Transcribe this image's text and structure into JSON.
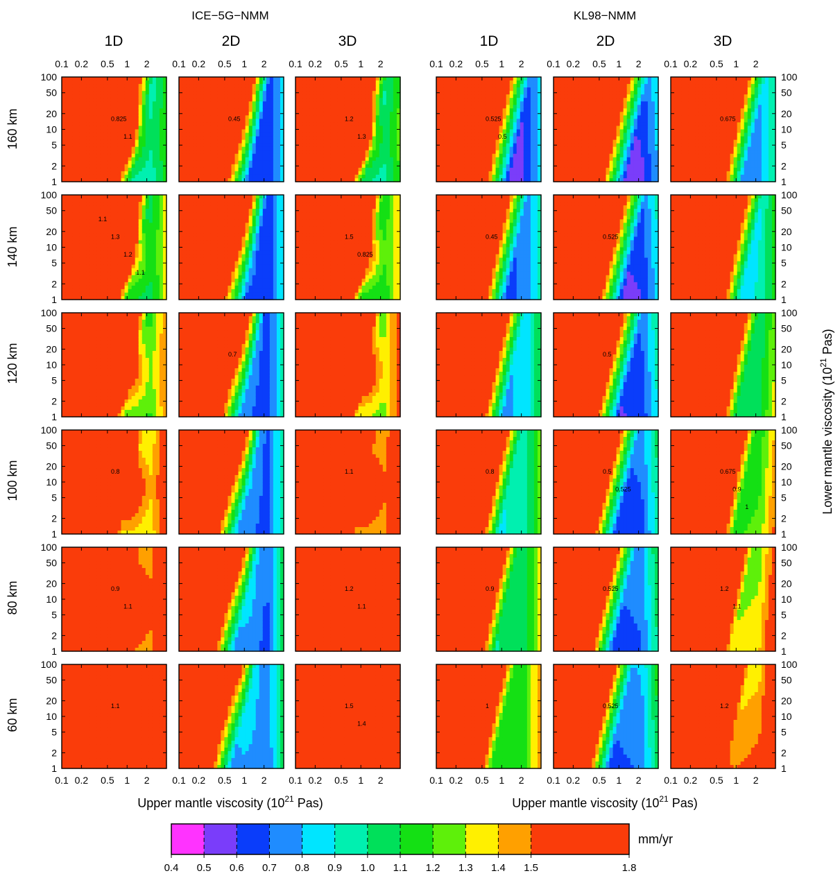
{
  "chart_data": {
    "type": "heatmap",
    "groups": [
      {
        "title": "ICE−5G−NMM",
        "columns": [
          "1D",
          "2D",
          "3D"
        ]
      },
      {
        "title": "KL98−NMM",
        "columns": [
          "1D",
          "2D",
          "3D"
        ]
      }
    ],
    "rows": [
      "160 km",
      "140 km",
      "120 km",
      "100 km",
      "80 km",
      "60 km"
    ],
    "x_axis": {
      "label": "Upper mantle viscosity (10",
      "sup": "21",
      "label_end": " Pas)",
      "ticks": [
        "0.1",
        "0.2",
        "0.5",
        "1",
        "2"
      ],
      "tick_values": [
        0.1,
        0.2,
        0.5,
        1,
        2
      ],
      "range": [
        0.1,
        4
      ],
      "scale": "log"
    },
    "y_axis": {
      "label": "Lower mantle viscosity (10",
      "sup": "21",
      "label_end": " Pas)",
      "ticks": [
        "100",
        "50",
        "20",
        "10",
        "5",
        "2",
        "1"
      ],
      "tick_values": [
        100,
        50,
        20,
        10,
        5,
        2,
        1
      ],
      "range": [
        1,
        100
      ],
      "scale": "log"
    },
    "colorbar": {
      "unit": "mm/yr",
      "boundaries": [
        "0.4",
        "0.5",
        "0.6",
        "0.7",
        "0.8",
        "0.9",
        "1.0",
        "1.1",
        "1.2",
        "1.3",
        "1.4",
        "1.5",
        "1.8"
      ],
      "colors": [
        "#ff33ff",
        "#7a3dfa",
        "#0a3dfa",
        "#1f8cff",
        "#00e5ff",
        "#00f0b0",
        "#00e05a",
        "#14e014",
        "#5ef00a",
        "#fff000",
        "#ffa000",
        "#fa3c0a"
      ]
    },
    "contour_labels": [
      {
        "panel": "r0c0",
        "text": "0.825"
      },
      {
        "panel": "r0c0",
        "text": "1.1"
      },
      {
        "panel": "r0c1",
        "text": "0.45"
      },
      {
        "panel": "r0c2",
        "text": "1.2"
      },
      {
        "panel": "r0c2",
        "text": "1.3"
      },
      {
        "panel": "r0c3",
        "text": "0.525"
      },
      {
        "panel": "r0c3",
        "text": "0.5"
      },
      {
        "panel": "r0c5",
        "text": "0.675"
      },
      {
        "panel": "r1c0",
        "text": "1.3"
      },
      {
        "panel": "r1c0",
        "text": "1.2"
      },
      {
        "panel": "r1c0",
        "text": "1.1"
      },
      {
        "panel": "r1c0",
        "text": "1.1"
      },
      {
        "panel": "r1c2",
        "text": "1.5"
      },
      {
        "panel": "r1c2",
        "text": "0.825"
      },
      {
        "panel": "r1c3",
        "text": "0.45"
      },
      {
        "panel": "r1c4",
        "text": "0.525"
      },
      {
        "panel": "r2c1",
        "text": "0.7"
      },
      {
        "panel": "r2c4",
        "text": "0.5"
      },
      {
        "panel": "r3c0",
        "text": "0.8"
      },
      {
        "panel": "r3c2",
        "text": "1.1"
      },
      {
        "panel": "r3c3",
        "text": "0.8"
      },
      {
        "panel": "r3c4",
        "text": "0.5"
      },
      {
        "panel": "r3c4",
        "text": "0.525"
      },
      {
        "panel": "r3c5",
        "text": "0.675"
      },
      {
        "panel": "r3c5",
        "text": "0.9"
      },
      {
        "panel": "r3c5",
        "text": "1"
      },
      {
        "panel": "r4c0",
        "text": "0.9"
      },
      {
        "panel": "r4c0",
        "text": "1.1"
      },
      {
        "panel": "r4c2",
        "text": "1.2"
      },
      {
        "panel": "r4c2",
        "text": "1.1"
      },
      {
        "panel": "r4c3",
        "text": "0.9"
      },
      {
        "panel": "r4c4",
        "text": "0.525"
      },
      {
        "panel": "r4c5",
        "text": "1.2"
      },
      {
        "panel": "r4c5",
        "text": "1.1"
      },
      {
        "panel": "r5c0",
        "text": "1.1"
      },
      {
        "panel": "r5c2",
        "text": "1.5"
      },
      {
        "panel": "r5c2",
        "text": "1.4"
      },
      {
        "panel": "r5c3",
        "text": "1"
      },
      {
        "panel": "r5c4",
        "text": "0.525"
      },
      {
        "panel": "r5c5",
        "text": "1.2"
      }
    ]
  }
}
